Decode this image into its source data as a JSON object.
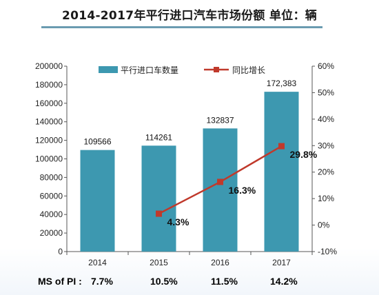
{
  "title": "2014-2017年平行进口汽车市场份额  单位：辆",
  "chart_data": {
    "type": "bar",
    "categories": [
      "2014",
      "2015",
      "2016",
      "2017"
    ],
    "bar_series": {
      "name": "平行进口车数量",
      "values": [
        109566,
        114261,
        132837,
        172383
      ],
      "labels": [
        "109566",
        "114261",
        "132837",
        "172,383"
      ],
      "color": "#3d98b0"
    },
    "line_series": {
      "name": "同比增长",
      "x": [
        "2015",
        "2016",
        "2017"
      ],
      "values": [
        4.3,
        16.3,
        29.8
      ],
      "labels": [
        "4.3%",
        "16.3%",
        "29.8%"
      ],
      "color": "#c0392b"
    },
    "y_left": {
      "range": [
        0,
        200000
      ],
      "ticks": [
        "0",
        "20000",
        "40000",
        "60000",
        "80000",
        "100000",
        "120000",
        "140000",
        "160000",
        "180000",
        "200000"
      ]
    },
    "y_right": {
      "range": [
        -10,
        60
      ],
      "ticks": [
        "-10%",
        "0%",
        "10%",
        "20%",
        "30%",
        "40%",
        "50%",
        "60%"
      ]
    },
    "legend_position": "top",
    "grid": false
  },
  "market_share": {
    "label": "MS of PI :",
    "values": [
      "7.7%",
      "10.5%",
      "11.5%",
      "14.2%"
    ]
  }
}
